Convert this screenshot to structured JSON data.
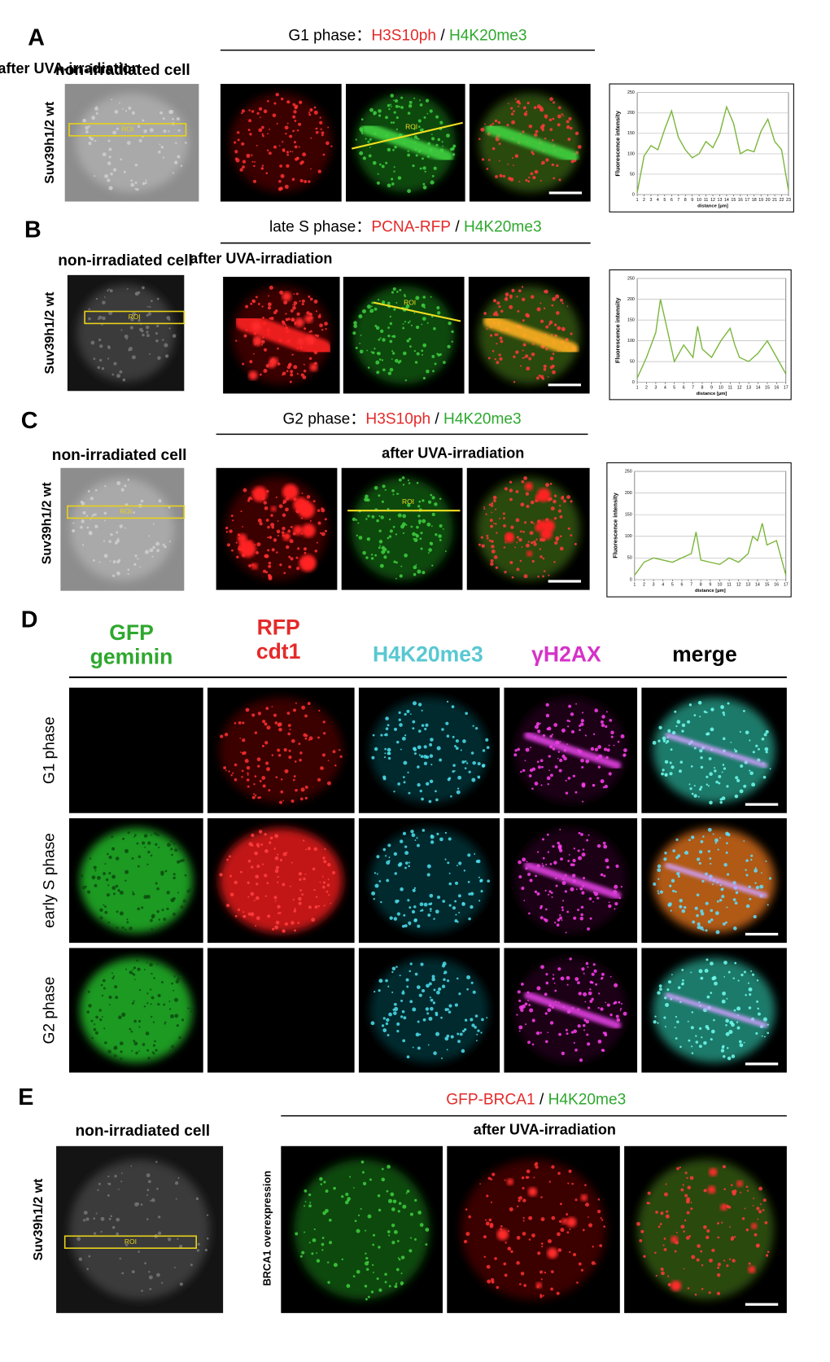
{
  "panels": [
    {
      "letter": "A",
      "title_prefix": "G1 phase：",
      "stain1": "H3S10ph",
      "sep": " / ",
      "stain2": "H4K20me3",
      "left_label": "non-irradiated cell",
      "row_label": "Suv39h1/2 wt",
      "roi_box": "ROI",
      "roi_line": "ROI",
      "subtitle": "after UVA-irradiation",
      "plot": {
        "type": "line",
        "ylabel": "Fluorescence intensity",
        "xlabel": "distance [µm]",
        "ylim": [
          0,
          250
        ],
        "yticks": [
          0,
          50,
          100,
          150,
          200,
          250
        ],
        "xlim": [
          1,
          23
        ],
        "xticks": [
          1,
          2,
          3,
          4,
          5,
          6,
          7,
          8,
          9,
          10,
          11,
          12,
          13,
          14,
          15,
          16,
          17,
          18,
          19,
          20,
          21,
          22,
          23
        ],
        "color": "#7ab539",
        "x": [
          1,
          2,
          3,
          4,
          5,
          6,
          7,
          8,
          9,
          10,
          11,
          12,
          13,
          14,
          15,
          16,
          17,
          18,
          19,
          20,
          21,
          22,
          23
        ],
        "values": [
          5,
          95,
          120,
          110,
          160,
          205,
          140,
          110,
          90,
          100,
          130,
          115,
          150,
          215,
          175,
          100,
          110,
          105,
          155,
          185,
          130,
          110,
          10
        ]
      }
    },
    {
      "letter": "B",
      "title_prefix": "late S phase：",
      "stain1": "PCNA-RFP",
      "sep": " / ",
      "stain2": "H4K20me3",
      "left_label": "non-irradiated cell",
      "row_label": "Suv39h1/2 wt",
      "roi_box": "ROI",
      "roi_line": "ROI",
      "subtitle": "after UVA-irradiation",
      "plot": {
        "type": "line",
        "ylabel": "Fluorescence intensity",
        "xlabel": "distance [µm]",
        "ylim": [
          0,
          250
        ],
        "yticks": [
          0,
          50,
          100,
          150,
          200,
          250
        ],
        "xlim": [
          1,
          17
        ],
        "xticks": [
          1,
          2,
          3,
          4,
          5,
          6,
          7,
          8,
          9,
          10,
          11,
          12,
          13,
          14,
          15,
          16,
          17
        ],
        "color": "#7ab539",
        "x": [
          1,
          2,
          3,
          3.5,
          4,
          5,
          6,
          7,
          7.5,
          8,
          9,
          10,
          11,
          11.5,
          12,
          13,
          14,
          15,
          16,
          17
        ],
        "values": [
          10,
          60,
          120,
          200,
          150,
          50,
          90,
          60,
          135,
          80,
          60,
          100,
          130,
          90,
          60,
          50,
          70,
          100,
          60,
          20
        ]
      }
    },
    {
      "letter": "C",
      "title_prefix": "G2 phase：",
      "stain1": "H3S10ph",
      "sep": " / ",
      "stain2": "H4K20me3",
      "left_label": "non-irradiated cell",
      "row_label": "Suv39h1/2 wt",
      "roi_box": "ROI",
      "roi_line": "ROI",
      "subtitle": "after UVA-irradiation",
      "plot": {
        "type": "line",
        "ylabel": "Fluorescence intensity",
        "xlabel": "distance [µm]",
        "ylim": [
          0,
          250
        ],
        "yticks": [
          0,
          50,
          100,
          150,
          200,
          250
        ],
        "xlim": [
          1,
          17
        ],
        "xticks": [
          1,
          2,
          3,
          4,
          5,
          6,
          7,
          8,
          9,
          10,
          11,
          12,
          13,
          14,
          15,
          16,
          17
        ],
        "color": "#7ab539",
        "x": [
          1,
          2,
          3,
          4,
          5,
          6,
          7,
          7.5,
          8,
          9,
          10,
          11,
          12,
          13,
          13.5,
          14,
          14.5,
          15,
          16,
          17
        ],
        "values": [
          10,
          40,
          50,
          45,
          40,
          50,
          60,
          110,
          45,
          40,
          35,
          50,
          40,
          60,
          100,
          90,
          130,
          80,
          90,
          10
        ]
      }
    }
  ],
  "panel_d": {
    "letter": "D",
    "columns": [
      [
        "GFP",
        "geminin"
      ],
      [
        "RFP",
        "cdt1"
      ],
      [
        "H4K20me3"
      ],
      [
        "γH2AX"
      ],
      [
        "merge"
      ]
    ],
    "rows": [
      "G1 phase",
      "early S phase",
      "G2 phase"
    ]
  },
  "panel_e": {
    "letter": "E",
    "stain1": "GFP-BRCA1",
    "sep": " / ",
    "stain2": "H4K20me3",
    "left_label": "non-irradiated cell",
    "row_label": "Suv39h1/2 wt",
    "roi_box": "ROI",
    "subtitle": "after UVA-irradiation",
    "side_label": "BRCA1 overexpression"
  }
}
